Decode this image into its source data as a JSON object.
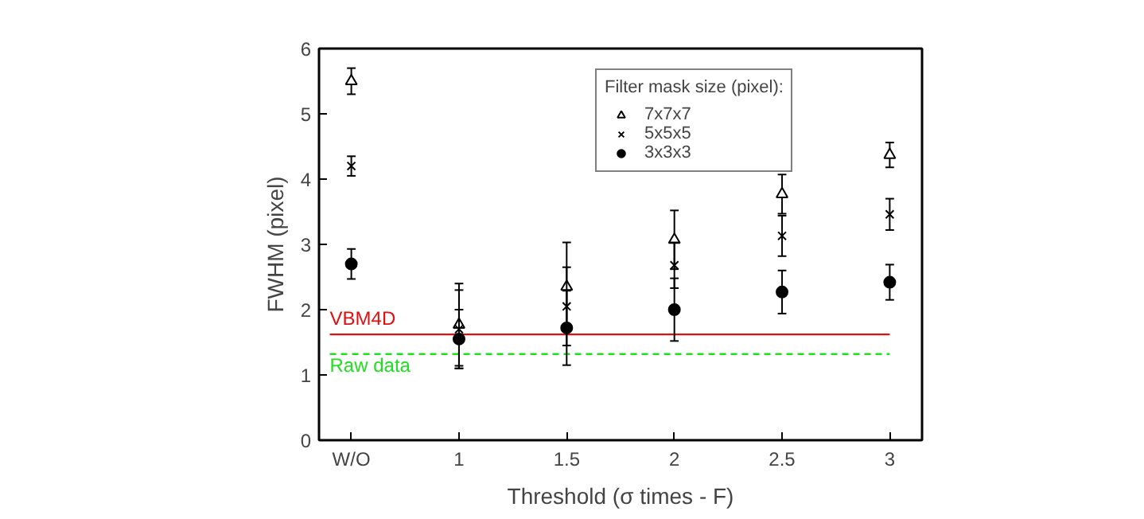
{
  "chart_data": {
    "type": "scatter",
    "xlabel": "Threshold (σ times - F)",
    "ylabel": "FWHM (pixel)",
    "categories": [
      "W/O",
      "1",
      "1.5",
      "2",
      "2.5",
      "3"
    ],
    "ylim": [
      0,
      6
    ],
    "yticks": [
      0,
      1,
      2,
      3,
      4,
      5,
      6
    ],
    "grid": false,
    "legend": "top right",
    "legend_title": "Filter mask size (pixel):",
    "series": [
      {
        "name": "7x7x7",
        "color": "#000000",
        "marker": "triangle",
        "values": [
          5.5,
          1.77,
          2.35,
          3.07,
          3.77,
          4.37
        ],
        "errors": [
          0.2,
          0.63,
          0.68,
          0.45,
          0.3,
          0.19
        ]
      },
      {
        "name": "5x5x5",
        "color": "#000000",
        "marker": "cross",
        "values": [
          4.2,
          1.7,
          2.05,
          2.68,
          3.13,
          3.46
        ],
        "errors": [
          0.15,
          0.6,
          0.6,
          0.35,
          0.31,
          0.24
        ]
      },
      {
        "name": "3x3x3",
        "color": "#000000",
        "marker": "circle",
        "values": [
          2.7,
          1.55,
          1.72,
          2.0,
          2.27,
          2.42
        ],
        "errors": [
          0.23,
          0.45,
          0.57,
          0.48,
          0.33,
          0.27
        ]
      }
    ],
    "ref_lines": [
      {
        "axis": "y",
        "value": 1.62,
        "label": "VBM4D",
        "color": "#dd1111",
        "line_style": "solid"
      },
      {
        "axis": "y",
        "value": 1.32,
        "label": "Raw data",
        "color": "#22dd22",
        "line_style": "dashed"
      }
    ]
  }
}
